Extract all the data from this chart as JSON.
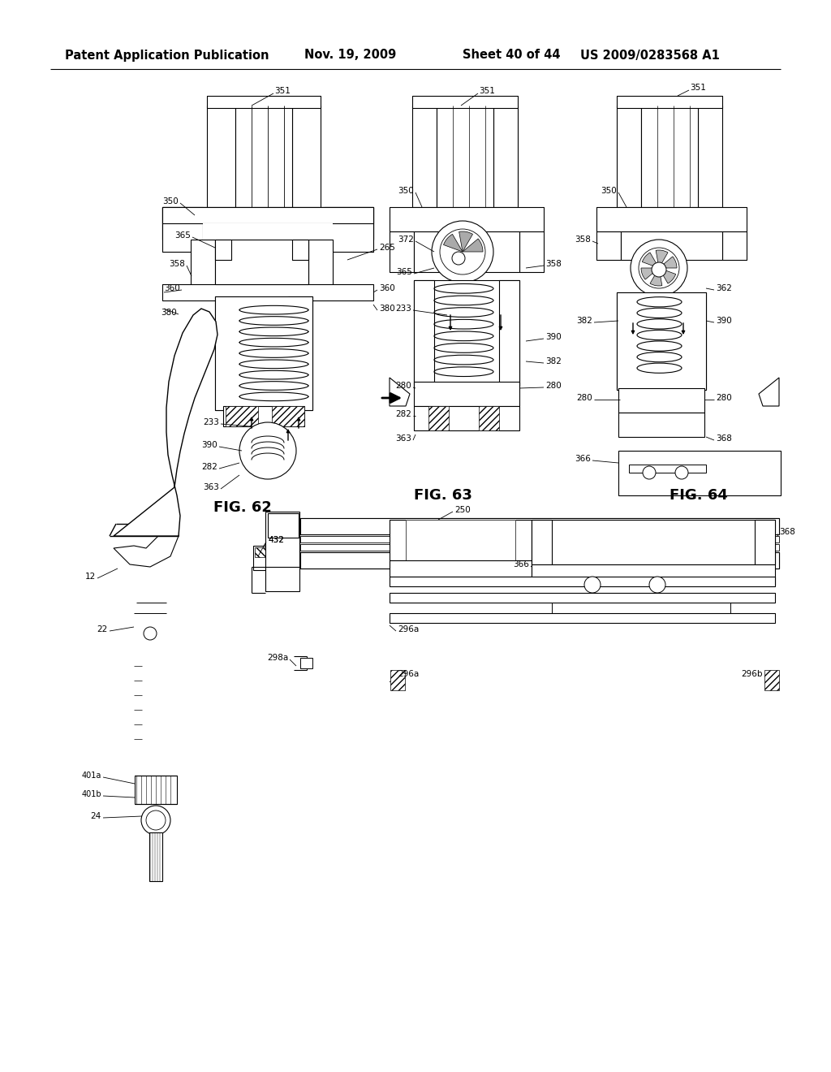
{
  "background_color": "#ffffff",
  "header_text": "Patent Application Publication",
  "header_date": "Nov. 19, 2009",
  "header_sheet": "Sheet 40 of 44",
  "header_patent": "US 2009/0283568 A1",
  "header_fontsize": 10.5,
  "text_color": "#000000",
  "line_color": "#000000",
  "fig62_label": "FIG. 62",
  "fig63_label": "FIG. 63",
  "fig64_label": "FIG. 64"
}
